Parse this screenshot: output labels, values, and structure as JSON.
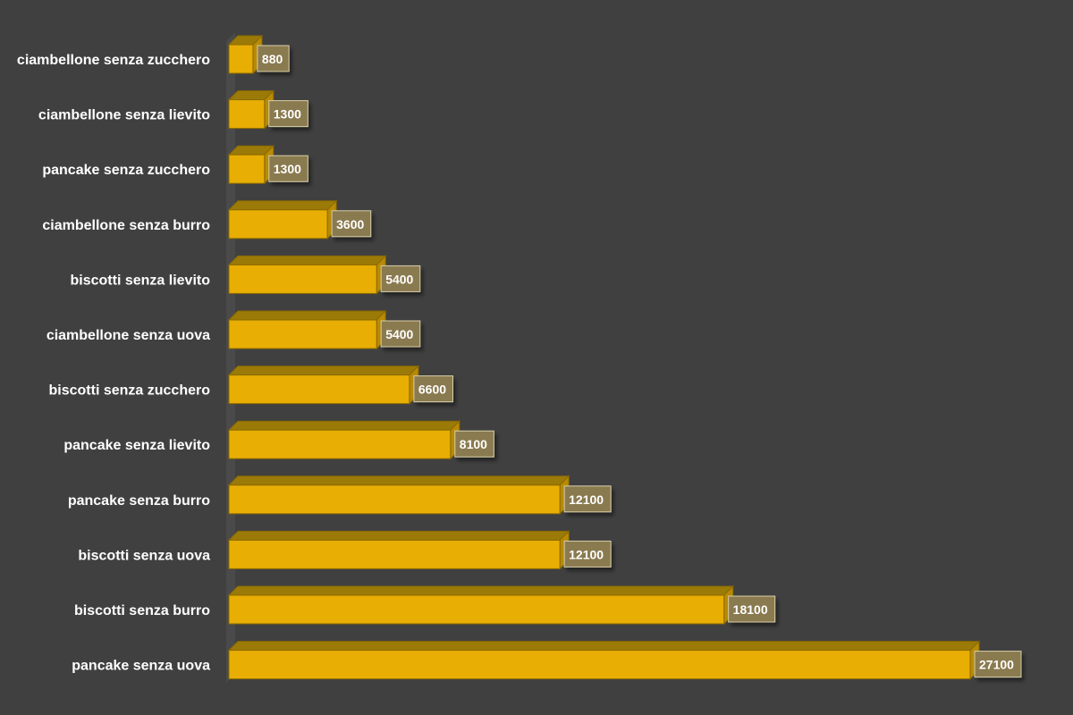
{
  "colors": {
    "background": "#404040",
    "bar_front": "#E8AE04",
    "bar_top": "#9C7A08",
    "bar_side": "#B88A06",
    "bar_edge": "#8A6A00",
    "label_box_fill": "#8A7A50",
    "label_box_stroke": "#D8CFA8",
    "wall": "#4A4A4A",
    "text": "#FFFFFF"
  },
  "chart_data": {
    "type": "bar",
    "orientation": "horizontal",
    "style": "3d",
    "title": "",
    "xlabel": "",
    "ylabel": "",
    "xlim": [
      0,
      27100
    ],
    "grid": false,
    "legend": "none",
    "categories": [
      "ciambellone senza zucchero",
      "ciambellone senza lievito",
      "pancake senza zucchero",
      "ciambellone senza burro",
      "biscotti senza lievito",
      "ciambellone senza uova",
      "biscotti senza zucchero",
      "pancake senza lievito",
      "pancake senza burro",
      "biscotti senza uova",
      "biscotti senza burro",
      "pancake senza uova"
    ],
    "values": [
      880,
      1300,
      1300,
      3600,
      5400,
      5400,
      6600,
      8100,
      12100,
      12100,
      18100,
      27100
    ],
    "data_labels": [
      "880",
      "1300",
      "1300",
      "3600",
      "5400",
      "5400",
      "6600",
      "8100",
      "12100",
      "12100",
      "18100",
      "27100"
    ]
  }
}
